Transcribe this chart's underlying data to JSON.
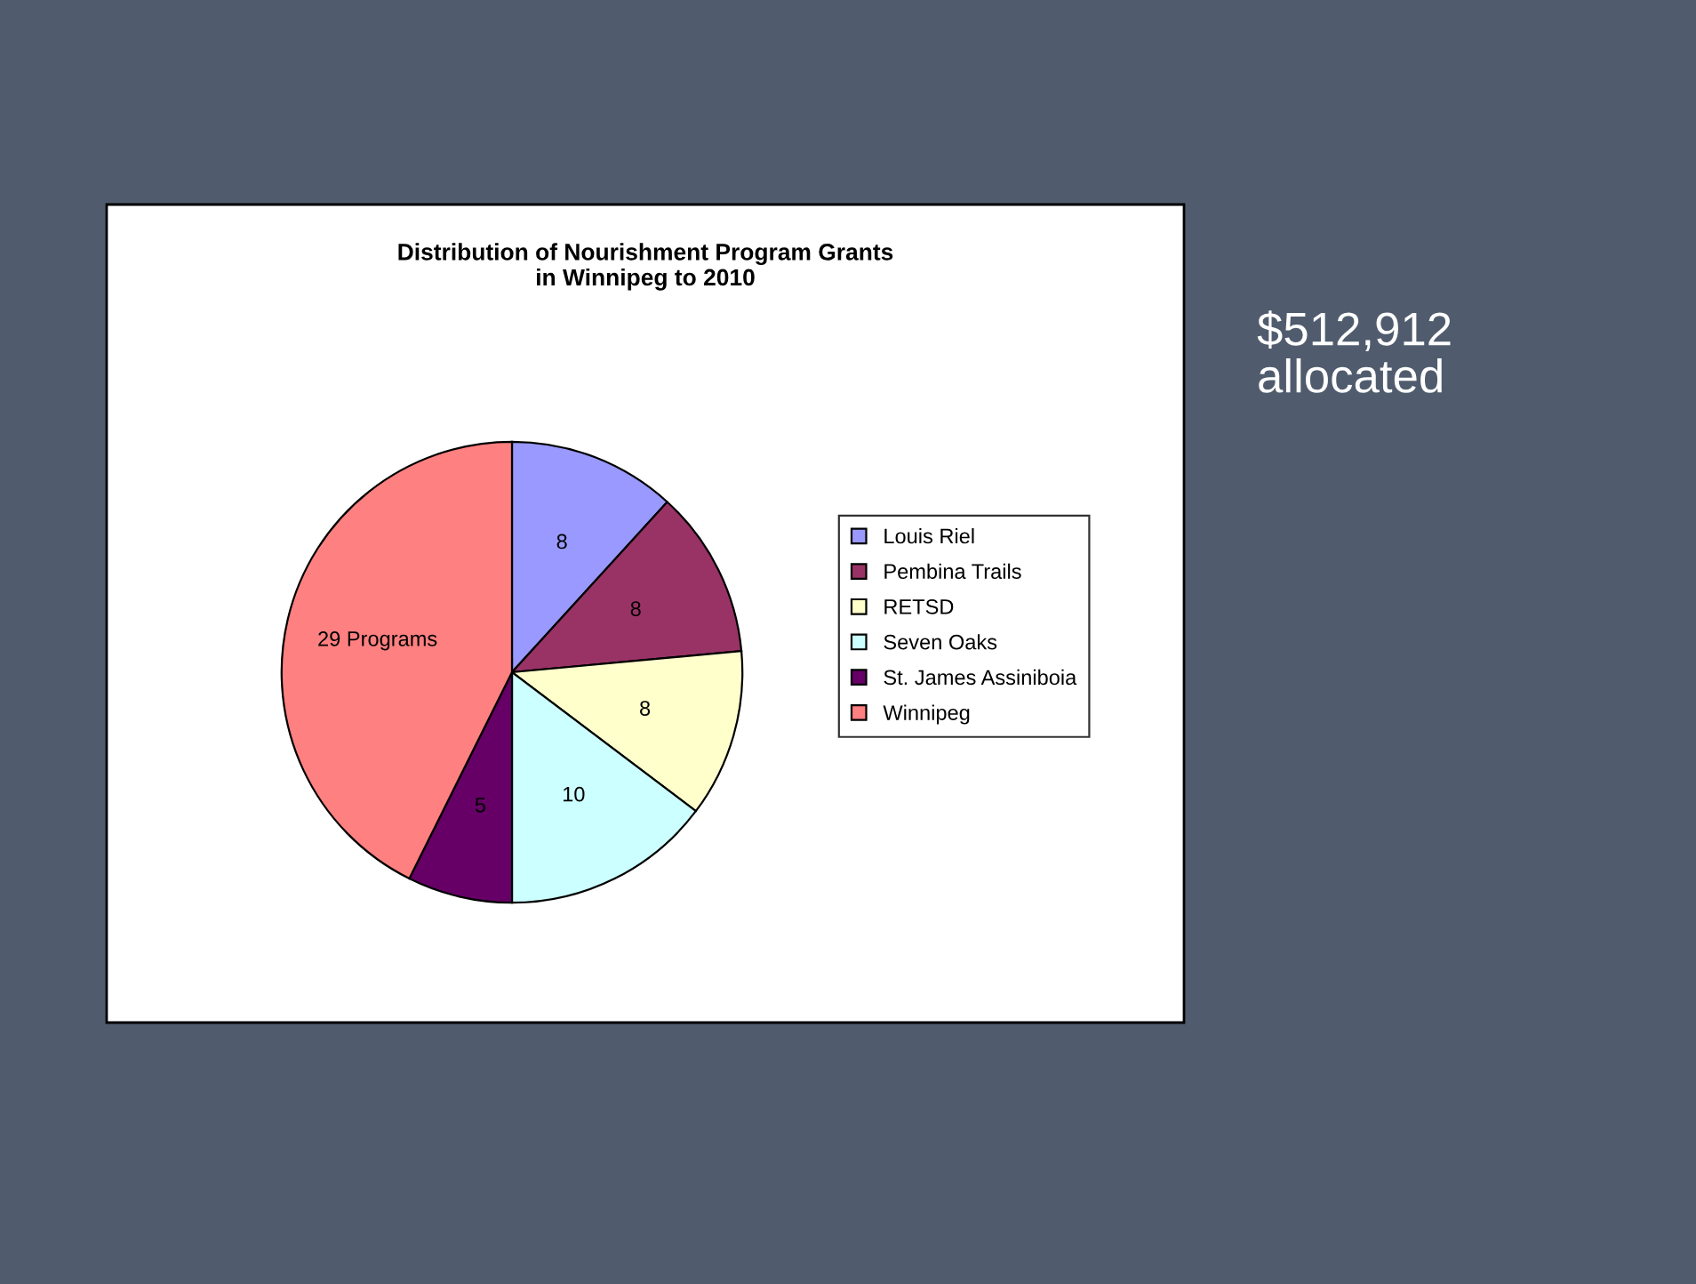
{
  "chart_data": {
    "type": "pie",
    "title": "Distribution of Nourishment Program Grants\nin Winnipeg to 2010",
    "categories": [
      "Louis Riel",
      "Pembina Trails",
      "RETSD",
      "Seven Oaks",
      "St. James Assiniboia",
      "Winnipeg"
    ],
    "values": [
      8,
      8,
      8,
      10,
      5,
      29
    ],
    "value_labels": [
      "8",
      "8",
      "8",
      "10",
      "5",
      "29 Programs"
    ],
    "colors": [
      "#9999ff",
      "#993366",
      "#ffffcc",
      "#ccffff",
      "#660066",
      "#ff8080"
    ],
    "legend": "right",
    "annotations": [
      "$512,912\nallocated"
    ]
  }
}
